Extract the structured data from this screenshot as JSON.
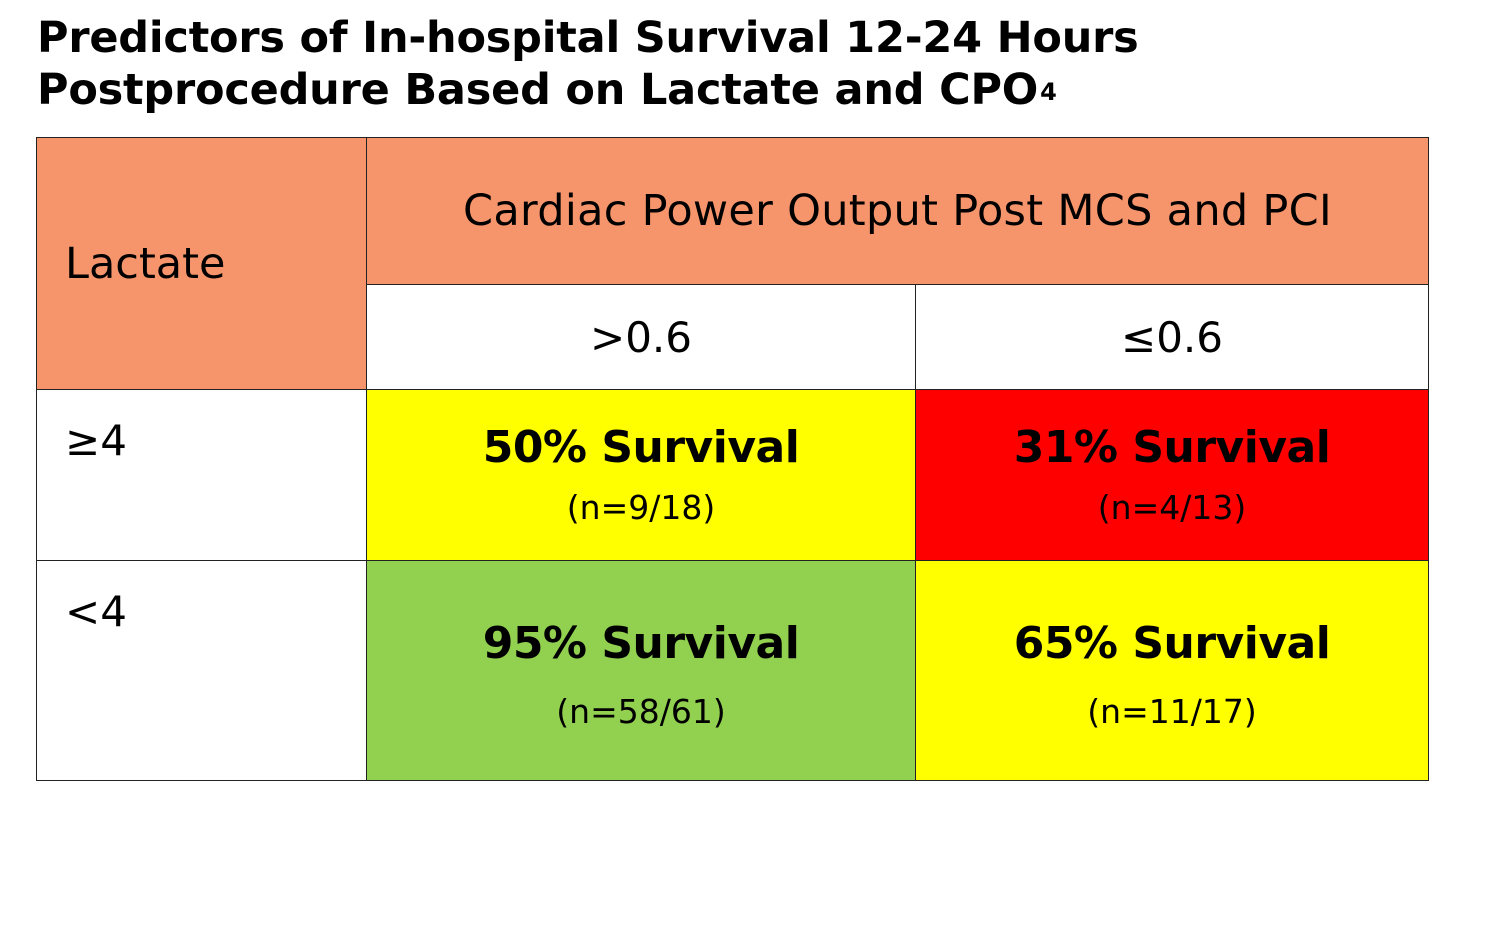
{
  "title": {
    "line1": "Predictors of In-hospital Survival 12-24 Hours",
    "line2": "Postprocedure Based on Lactate and CPO",
    "superscript": "4"
  },
  "table": {
    "row_header": "Lactate",
    "column_group_header": "Cardiac Power Output Post MCS and PCI",
    "columns": [
      ">0.6",
      "≤0.6"
    ],
    "rows": [
      {
        "label": "≥4",
        "cells": [
          {
            "survival": "50% Survival",
            "n": "(n=9/18)",
            "color": "#ffff00"
          },
          {
            "survival": "31% Survival",
            "n": "(n=4/13)",
            "color": "#ff0000"
          }
        ]
      },
      {
        "label": "<4",
        "cells": [
          {
            "survival": "95% Survival",
            "n": "(n=58/61)",
            "color": "#92d050"
          },
          {
            "survival": "65% Survival",
            "n": "(n=11/17)",
            "color": "#ffff00"
          }
        ]
      }
    ]
  },
  "colors": {
    "header_background": "#f6956b",
    "border": "#222222"
  }
}
